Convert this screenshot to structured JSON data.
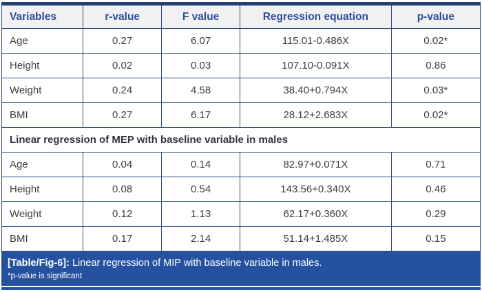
{
  "table": {
    "columns": [
      "Variables",
      "r-value",
      "F value",
      "Regression equation",
      "p-value"
    ],
    "mip_rows": [
      [
        "Age",
        "0.27",
        "6.07",
        "115.01-0.486X",
        "0.02*"
      ],
      [
        "Height",
        "0.02",
        "0.03",
        "107.10-0.091X",
        "0.86"
      ],
      [
        "Weight",
        "0.24",
        "4.58",
        "38.40+0.794X",
        "0.03*"
      ],
      [
        "BMI",
        "0.27",
        "6.17",
        "28.12+2.683X",
        "0.02*"
      ]
    ],
    "section_header": "Linear regression of MEP with baseline variable in males",
    "mep_rows": [
      [
        "Age",
        "0.04",
        "0.14",
        "82.97+0.071X",
        "0.71"
      ],
      [
        "Height",
        "0.08",
        "0.54",
        "143.56+0.340X",
        "0.46"
      ],
      [
        "Weight",
        "0.12",
        "1.13",
        "62.17+0.360X",
        "0.29"
      ],
      [
        "BMI",
        "0.17",
        "2.14",
        "51.14+1.485X",
        "0.15"
      ]
    ]
  },
  "caption": {
    "label": "[Table/Fig-6]:",
    "text": " Linear regression of MIP with baseline variable in males.",
    "footnote": "*p-value is significant"
  },
  "colors": {
    "caption_bg": "#2551a0",
    "table_border": "#2a4a7d",
    "top_border": "#253e72",
    "header_bg": "#f1f1f2",
    "header_text": "#2b4c9e",
    "body_text": "#3f3e40"
  }
}
